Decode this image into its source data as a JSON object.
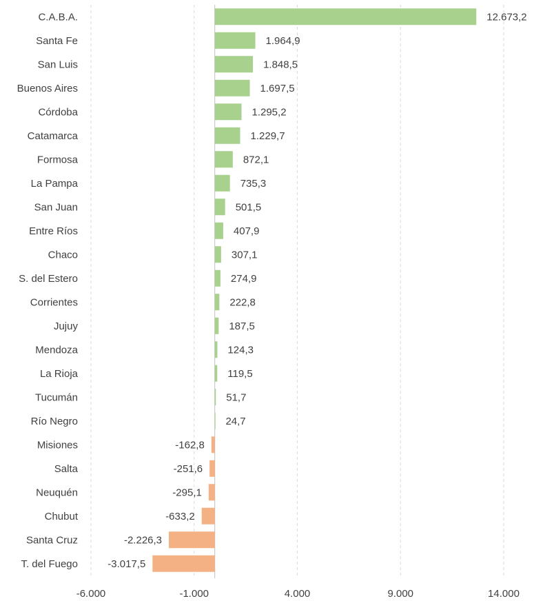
{
  "chart_data": {
    "type": "bar",
    "orientation": "horizontal",
    "title": "",
    "xlabel": "",
    "ylabel": "",
    "xlim": [
      -6000,
      14000
    ],
    "xticks": [
      -6000,
      -1000,
      4000,
      9000,
      14000
    ],
    "xtick_labels": [
      "-6.000",
      "-1.000",
      "4.000",
      "9.000",
      "14.000"
    ],
    "grid": "vertical-dashed",
    "legend": "none",
    "colors": {
      "positive": "#a9d18e",
      "negative": "#f4b183"
    },
    "categories": [
      "C.A.B.A.",
      "Santa Fe",
      "San Luis",
      "Buenos Aires",
      "Córdoba",
      "Catamarca",
      "Formosa",
      "La Pampa",
      "San Juan",
      "Entre Ríos",
      "Chaco",
      "S. del Estero",
      "Corrientes",
      "Jujuy",
      "Mendoza",
      "La Rioja",
      "Tucumán",
      "Río Negro",
      "Misiones",
      "Salta",
      "Neuquén",
      "Chubut",
      "Santa Cruz",
      "T. del Fuego"
    ],
    "values": [
      12673.2,
      1964.9,
      1848.5,
      1697.5,
      1295.2,
      1229.7,
      872.1,
      735.3,
      501.5,
      407.9,
      307.1,
      274.9,
      222.8,
      187.5,
      124.3,
      119.5,
      51.7,
      24.7,
      -162.8,
      -251.6,
      -295.1,
      -633.2,
      -2226.3,
      -3017.5
    ],
    "value_labels": [
      "12.673,2",
      "1.964,9",
      "1.848,5",
      "1.697,5",
      "1.295,2",
      "1.229,7",
      "872,1",
      "735,3",
      "501,5",
      "407,9",
      "307,1",
      "274,9",
      "222,8",
      "187,5",
      "124,3",
      "119,5",
      "51,7",
      "24,7",
      "-162,8",
      "-251,6",
      "-295,1",
      "-633,2",
      "-2.226,3",
      "-3.017,5"
    ]
  }
}
